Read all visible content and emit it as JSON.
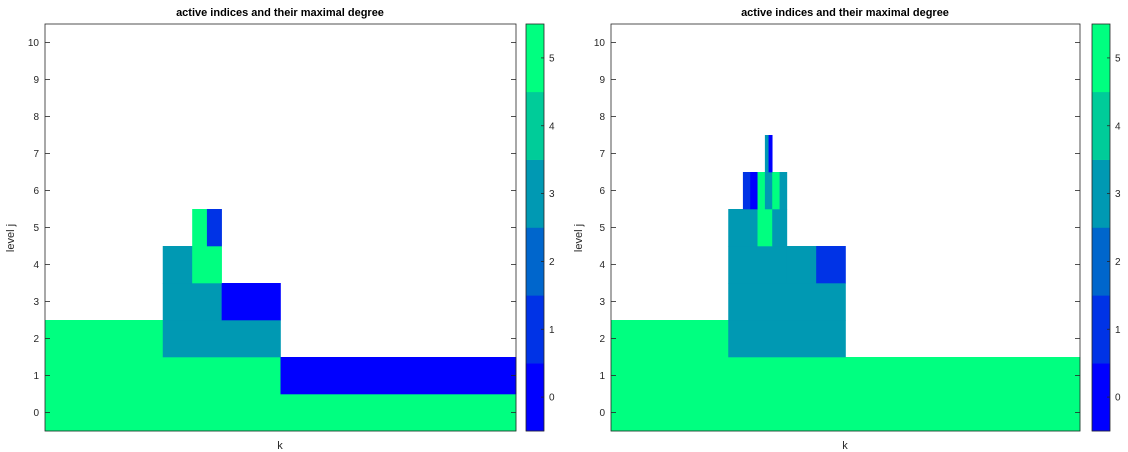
{
  "chart_data": [
    {
      "type": "heatmap",
      "title": "active indices and their maximal degree",
      "xlabel": "k",
      "ylabel": "level j",
      "xlim": [
        0,
        1
      ],
      "ylim": [
        -0.5,
        10.5
      ],
      "yticks": [
        0,
        1,
        2,
        3,
        4,
        5,
        6,
        7,
        8,
        9,
        10
      ],
      "colorbar": {
        "ticks": [
          0,
          1,
          2,
          3,
          4,
          5
        ],
        "range": [
          -0.5,
          5.5
        ]
      },
      "cells": [
        {
          "j": 0,
          "x0": 0,
          "x1": 1,
          "value": 5
        },
        {
          "j": 1,
          "x0": 0,
          "x1": 0.5,
          "value": 5
        },
        {
          "j": 1,
          "x0": 0.5,
          "x1": 1,
          "value": 0
        },
        {
          "j": 2,
          "x0": 0,
          "x1": 0.25,
          "value": 5
        },
        {
          "j": 2,
          "x0": 0.25,
          "x1": 0.5,
          "value": 3
        },
        {
          "j": 3,
          "x0": 0.25,
          "x1": 0.375,
          "value": 3
        },
        {
          "j": 3,
          "x0": 0.375,
          "x1": 0.5,
          "value": 0
        },
        {
          "j": 4,
          "x0": 0.25,
          "x1": 0.3125,
          "value": 3
        },
        {
          "j": 4,
          "x0": 0.3125,
          "x1": 0.375,
          "value": 5
        },
        {
          "j": 5,
          "x0": 0.3125,
          "x1": 0.34375,
          "value": 5
        },
        {
          "j": 5,
          "x0": 0.34375,
          "x1": 0.375,
          "value": 1
        }
      ]
    },
    {
      "type": "heatmap",
      "title": "active indices and their maximal degree",
      "xlabel": "k",
      "ylabel": "level j",
      "xlim": [
        0,
        1
      ],
      "ylim": [
        -0.5,
        10.5
      ],
      "yticks": [
        0,
        1,
        2,
        3,
        4,
        5,
        6,
        7,
        8,
        9,
        10
      ],
      "colorbar": {
        "ticks": [
          0,
          1,
          2,
          3,
          4,
          5
        ],
        "range": [
          -0.5,
          5.5
        ]
      },
      "cells": [
        {
          "j": 0,
          "x0": 0,
          "x1": 1,
          "value": 5
        },
        {
          "j": 1,
          "x0": 0,
          "x1": 1,
          "value": 5
        },
        {
          "j": 2,
          "x0": 0,
          "x1": 0.25,
          "value": 5
        },
        {
          "j": 2,
          "x0": 0.25,
          "x1": 0.5,
          "value": 3
        },
        {
          "j": 3,
          "x0": 0.25,
          "x1": 0.5,
          "value": 3
        },
        {
          "j": 4,
          "x0": 0.25,
          "x1": 0.375,
          "value": 3
        },
        {
          "j": 4,
          "x0": 0.375,
          "x1": 0.4375,
          "value": 3
        },
        {
          "j": 4,
          "x0": 0.4375,
          "x1": 0.5,
          "value": 1
        },
        {
          "j": 5,
          "x0": 0.25,
          "x1": 0.28125,
          "value": 3
        },
        {
          "j": 5,
          "x0": 0.28125,
          "x1": 0.3125,
          "value": 3
        },
        {
          "j": 5,
          "x0": 0.3125,
          "x1": 0.34375,
          "value": 5
        },
        {
          "j": 5,
          "x0": 0.34375,
          "x1": 0.375,
          "value": 3
        },
        {
          "j": 6,
          "x0": 0.28125,
          "x1": 0.296875,
          "value": 1
        },
        {
          "j": 6,
          "x0": 0.296875,
          "x1": 0.3125,
          "value": 0
        },
        {
          "j": 6,
          "x0": 0.3125,
          "x1": 0.328125,
          "value": 5
        },
        {
          "j": 6,
          "x0": 0.328125,
          "x1": 0.34375,
          "value": 3
        },
        {
          "j": 6,
          "x0": 0.34375,
          "x1": 0.359375,
          "value": 5
        },
        {
          "j": 6,
          "x0": 0.359375,
          "x1": 0.375,
          "value": 3
        },
        {
          "j": 7,
          "x0": 0.328125,
          "x1": 0.3359375,
          "value": 3
        },
        {
          "j": 7,
          "x0": 0.3359375,
          "x1": 0.34375,
          "value": 0
        }
      ]
    }
  ],
  "palette": [
    "#0000ff",
    "#0033e6",
    "#0066cc",
    "#0099b3",
    "#00cc99",
    "#00ff80"
  ],
  "colors": {
    "axis": "#262626",
    "background": "#ffffff"
  }
}
